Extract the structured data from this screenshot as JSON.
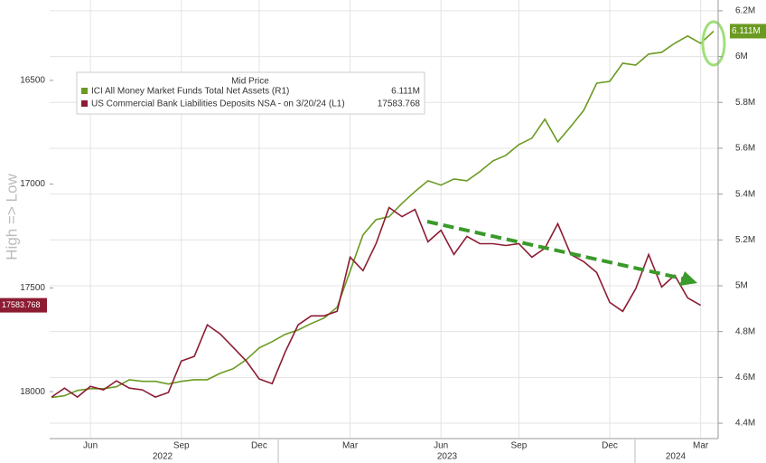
{
  "chart_data": {
    "type": "line",
    "y_label": "High => Low",
    "legend_title": "Mid Price",
    "categories": [
      null,
      null,
      null,
      "Jun",
      null,
      null,
      null,
      null,
      null,
      null,
      "Sep",
      null,
      null,
      null,
      null,
      null,
      "Dec",
      null,
      null,
      null,
      null,
      null,
      null,
      "Mar",
      null,
      null,
      null,
      null,
      null,
      null,
      "Jun",
      null,
      null,
      null,
      null,
      null,
      "Sep",
      null,
      null,
      null,
      null,
      null,
      null,
      "Dec",
      null,
      null,
      null,
      null,
      null,
      null,
      "Mar",
      null
    ],
    "years": [
      "2022",
      "2023",
      "2024"
    ],
    "ylim": [
      16113,
      18226
    ],
    "y_inverted": true,
    "yticks": [
      16500,
      17000,
      17500,
      18000
    ],
    "y2lim": [
      4.333,
      6.247
    ],
    "y2ticks": [
      {
        "value": 4.4,
        "label": "4.4M"
      },
      {
        "value": 4.6,
        "label": "4.6M"
      },
      {
        "value": 4.8,
        "label": "4.8M"
      },
      {
        "value": 5,
        "label": "5M"
      },
      {
        "value": 5.2,
        "label": "5.2M"
      },
      {
        "value": 5.4,
        "label": "5.4M"
      },
      {
        "value": 5.6,
        "label": "5.6M"
      },
      {
        "value": 5.8,
        "label": "5.8M"
      },
      {
        "value": 6,
        "label": "6M"
      },
      {
        "value": 6.2,
        "label": "6.2M"
      }
    ],
    "grid": true,
    "legend_position": "upper left",
    "series": [
      {
        "name": "ICI All Money Market Funds Total Net Assets  (R1)",
        "color": "#6b9a22",
        "axis": "y2",
        "last_label": "6.111M",
        "values": [
          4.512,
          4.52,
          4.543,
          4.551,
          4.551,
          4.559,
          4.59,
          4.583,
          4.583,
          4.571,
          4.583,
          4.59,
          4.59,
          4.618,
          4.638,
          4.677,
          4.729,
          4.756,
          4.788,
          4.807,
          4.835,
          4.859,
          4.906,
          5.064,
          5.222,
          5.289,
          5.301,
          5.36,
          5.411,
          5.458,
          5.439,
          5.466,
          5.458,
          5.498,
          5.545,
          5.569,
          5.616,
          5.644,
          5.727,
          5.628,
          5.695,
          5.766,
          5.884,
          5.892,
          5.971,
          5.963,
          6.011,
          6.019,
          6.058,
          6.09,
          6.058,
          6.111
        ]
      },
      {
        "name": "US Commercial Bank Liabilities Deposits NSA  -  on 3/20/24  (L1)",
        "color": "#8c1c32",
        "axis": "y",
        "last_label": "17583.768",
        "values": [
          18026,
          17983,
          18026,
          17974,
          17991,
          17948,
          17983,
          17991,
          18026,
          18004,
          17852,
          17830,
          17678,
          17722,
          17787,
          17852,
          17939,
          17961,
          17809,
          17678,
          17635,
          17635,
          17613,
          17352,
          17417,
          17287,
          17113,
          17157,
          17122,
          17278,
          17222,
          17339,
          17252,
          17287,
          17287,
          17296,
          17287,
          17352,
          17309,
          17191,
          17339,
          17374,
          17426,
          17570,
          17613,
          17504,
          17339,
          17496,
          17439,
          17548,
          17583.768,
          null
        ]
      }
    ]
  }
}
